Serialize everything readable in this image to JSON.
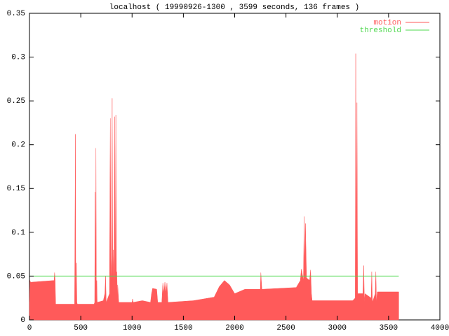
{
  "chart_data": {
    "type": "area",
    "title": "localhost ( 19990926-1300 , 3599 seconds, 136 frames )",
    "xlim": [
      0,
      4000
    ],
    "xticks": [
      0,
      500,
      1000,
      1500,
      2000,
      2500,
      3000,
      3500,
      4000
    ],
    "ylim": [
      0,
      0.35
    ],
    "yticks": [
      0,
      0.05,
      0.1,
      0.15,
      0.2,
      0.25,
      0.3,
      0.35
    ],
    "grid": false,
    "legend": "top-right",
    "series": [
      {
        "name": "motion",
        "color": "#ff5a5a",
        "style": "area",
        "x": [
          0,
          5,
          10,
          240,
          245,
          250,
          255,
          440,
          448,
          452,
          458,
          462,
          466,
          630,
          636,
          640,
          644,
          648,
          652,
          656,
          660,
          720,
          735,
          742,
          748,
          780,
          788,
          794,
          800,
          806,
          812,
          818,
          824,
          830,
          836,
          842,
          848,
          852,
          856,
          860,
          870,
          1000,
          1005,
          1010,
          1100,
          1180,
          1190,
          1200,
          1240,
          1250,
          1290,
          1300,
          1310,
          1320,
          1330,
          1340,
          1350,
          1600,
          1800,
          1850,
          1900,
          1950,
          2000,
          2100,
          2250,
          2255,
          2265,
          2270,
          2600,
          2640,
          2650,
          2670,
          2678,
          2684,
          2690,
          2700,
          2730,
          2740,
          2748,
          2755,
          3150,
          3175,
          3180,
          3185,
          3192,
          3198,
          3204,
          3210,
          3250,
          3258,
          3264,
          3270,
          3330,
          3336,
          3342,
          3370,
          3376,
          3382,
          3390,
          3599
        ],
        "values": [
          0.02,
          0.045,
          0.043,
          0.045,
          0.054,
          0.045,
          0.018,
          0.018,
          0.212,
          0.018,
          0.065,
          0.02,
          0.018,
          0.018,
          0.02,
          0.146,
          0.02,
          0.196,
          0.02,
          0.045,
          0.02,
          0.022,
          0.03,
          0.05,
          0.02,
          0.03,
          0.23,
          0.04,
          0.07,
          0.253,
          0.04,
          0.08,
          0.03,
          0.232,
          0.04,
          0.234,
          0.03,
          0.055,
          0.025,
          0.04,
          0.02,
          0.02,
          0.024,
          0.02,
          0.022,
          0.02,
          0.03,
          0.036,
          0.035,
          0.02,
          0.02,
          0.042,
          0.03,
          0.043,
          0.03,
          0.042,
          0.02,
          0.022,
          0.026,
          0.038,
          0.045,
          0.04,
          0.03,
          0.035,
          0.035,
          0.054,
          0.035,
          0.035,
          0.037,
          0.045,
          0.058,
          0.045,
          0.118,
          0.05,
          0.11,
          0.048,
          0.045,
          0.057,
          0.03,
          0.022,
          0.022,
          0.025,
          0.304,
          0.03,
          0.248,
          0.03,
          0.03,
          0.03,
          0.03,
          0.062,
          0.02,
          0.03,
          0.025,
          0.055,
          0.02,
          0.03,
          0.055,
          0.02,
          0.032,
          0.032
        ]
      },
      {
        "name": "threshold",
        "color": "#4ed84e",
        "style": "line",
        "x": [
          0,
          3599
        ],
        "values": [
          0.05,
          0.05
        ]
      }
    ]
  }
}
